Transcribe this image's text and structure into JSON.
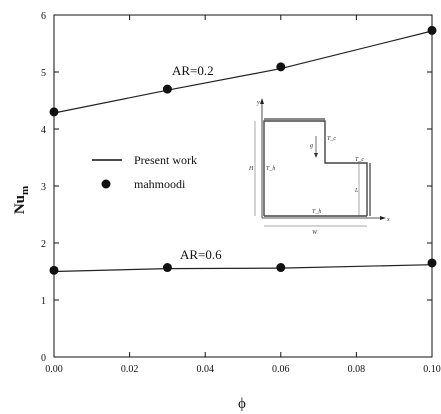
{
  "chart_data": {
    "type": "line",
    "xlabel": "ϕ",
    "ylabel_main": "Nu",
    "ylabel_sub": "m",
    "xlim": [
      0,
      0.1
    ],
    "ylim": [
      0,
      6
    ],
    "x_ticks": [
      "0.00",
      "0.02",
      "0.04",
      "0.06",
      "0.08",
      "0.10"
    ],
    "y_ticks": [
      "0",
      "1",
      "2",
      "3",
      "4",
      "5",
      "6"
    ],
    "grid": false,
    "legend_position": "middle-left",
    "legend": {
      "line_label": "Present work",
      "marker_label": "mahmoodi"
    },
    "series": [
      {
        "annotation": "AR=0.2",
        "line": {
          "x": [
            0,
            0.03,
            0.06,
            0.1
          ],
          "y": [
            4.28,
            4.68,
            5.06,
            5.72
          ]
        },
        "markers": {
          "x": [
            0,
            0.03,
            0.06,
            0.1
          ],
          "y": [
            4.3,
            4.7,
            5.09,
            5.73
          ]
        }
      },
      {
        "annotation": "AR=0.6",
        "line": {
          "x": [
            0,
            0.03,
            0.06,
            0.1
          ],
          "y": [
            1.5,
            1.55,
            1.56,
            1.62
          ]
        },
        "markers": {
          "x": [
            0,
            0.03,
            0.06,
            0.1
          ],
          "y": [
            1.52,
            1.57,
            1.57,
            1.65
          ]
        }
      }
    ],
    "inset": {
      "labels": [
        "y",
        "x",
        "H",
        "W",
        "L",
        "T_h",
        "T_h",
        "T_c",
        "T_c",
        "g"
      ]
    }
  }
}
